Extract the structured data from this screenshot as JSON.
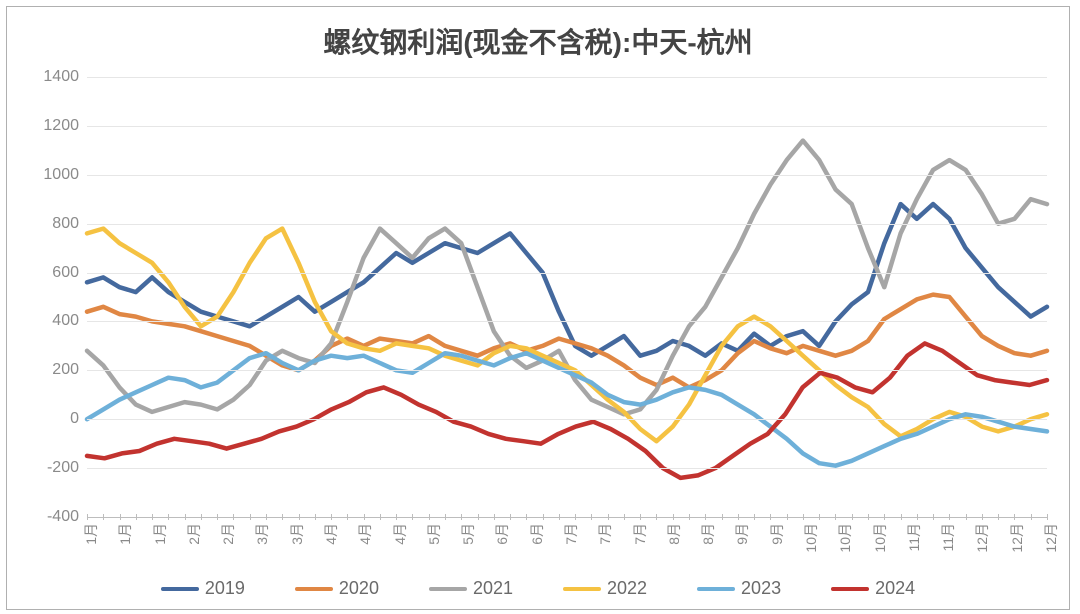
{
  "chart": {
    "type": "line",
    "title": "螺纹钢利润(现金不含税):中天-杭州",
    "title_fontsize": 28,
    "title_color": "#444444",
    "background_color": "#ffffff",
    "grid_color": "#e6e6e6",
    "axis_color": "#bdbdbd",
    "tick_label_color": "#8a8a8a",
    "tick_label_fontsize": 16,
    "x_tick_label_fontsize": 14,
    "ylim": [
      -400,
      1400
    ],
    "yticks": [
      -400,
      -200,
      0,
      200,
      400,
      600,
      800,
      1000,
      1200,
      1400
    ],
    "x_categories": [
      "1月",
      "1月",
      "1月",
      "2月",
      "2月",
      "3月",
      "3月",
      "4月",
      "4月",
      "4月",
      "5月",
      "5月",
      "6月",
      "6月",
      "7月",
      "7月",
      "7月",
      "8月",
      "8月",
      "9月",
      "9月",
      "10月",
      "10月",
      "10月",
      "11月",
      "11月",
      "12月",
      "12月",
      "12月"
    ],
    "x_points": 60,
    "line_width": 4.5,
    "legend_fontsize": 18,
    "series": [
      {
        "name": "2019",
        "color": "#44699e",
        "data": [
          560,
          580,
          540,
          520,
          580,
          520,
          480,
          440,
          420,
          400,
          380,
          420,
          460,
          500,
          440,
          480,
          520,
          560,
          620,
          680,
          640,
          680,
          720,
          700,
          680,
          720,
          760,
          680,
          600,
          440,
          300,
          260,
          300,
          340,
          260,
          280,
          320,
          300,
          260,
          310,
          280,
          350,
          300,
          340,
          360,
          300,
          400,
          470,
          520,
          720,
          880,
          820,
          880,
          820,
          700,
          620,
          540,
          480,
          420,
          460
        ]
      },
      {
        "name": "2020",
        "color": "#e08744",
        "data": [
          440,
          460,
          430,
          420,
          400,
          390,
          380,
          360,
          340,
          320,
          300,
          260,
          220,
          200,
          240,
          300,
          330,
          300,
          330,
          320,
          310,
          340,
          300,
          280,
          260,
          290,
          310,
          280,
          300,
          330,
          310,
          290,
          260,
          220,
          170,
          140,
          170,
          130,
          160,
          200,
          270,
          320,
          290,
          270,
          300,
          280,
          260,
          280,
          320,
          410,
          450,
          490,
          510,
          500,
          420,
          340,
          300,
          270,
          260,
          280
        ]
      },
      {
        "name": "2021",
        "color": "#a6a6a6",
        "data": [
          280,
          220,
          130,
          60,
          30,
          50,
          70,
          60,
          40,
          80,
          140,
          240,
          280,
          250,
          230,
          310,
          480,
          660,
          780,
          720,
          660,
          740,
          780,
          720,
          540,
          360,
          260,
          210,
          240,
          280,
          160,
          80,
          50,
          20,
          40,
          120,
          260,
          380,
          460,
          580,
          700,
          840,
          960,
          1060,
          1140,
          1060,
          940,
          880,
          700,
          540,
          760,
          900,
          1020,
          1060,
          1020,
          920,
          800,
          820,
          900,
          880
        ]
      },
      {
        "name": "2022",
        "color": "#f5c242",
        "data": [
          760,
          780,
          720,
          680,
          640,
          560,
          460,
          380,
          420,
          520,
          640,
          740,
          780,
          640,
          480,
          360,
          310,
          290,
          280,
          310,
          300,
          290,
          260,
          240,
          220,
          270,
          300,
          290,
          260,
          230,
          200,
          140,
          80,
          30,
          -40,
          -90,
          -30,
          60,
          180,
          300,
          380,
          420,
          380,
          320,
          260,
          200,
          140,
          90,
          50,
          -20,
          -70,
          -40,
          0,
          30,
          10,
          -30,
          -50,
          -30,
          0,
          20
        ]
      },
      {
        "name": "2023",
        "color": "#6eb0d9",
        "data": [
          0,
          40,
          80,
          110,
          140,
          170,
          160,
          130,
          150,
          200,
          250,
          270,
          230,
          200,
          240,
          260,
          250,
          260,
          230,
          200,
          190,
          230,
          270,
          260,
          240,
          220,
          250,
          270,
          240,
          210,
          180,
          150,
          100,
          70,
          60,
          80,
          110,
          130,
          120,
          100,
          60,
          20,
          -30,
          -80,
          -140,
          -180,
          -190,
          -170,
          -140,
          -110,
          -80,
          -60,
          -30,
          0,
          20,
          10,
          -10,
          -30,
          -40,
          -50
        ]
      },
      {
        "name": "2024",
        "color": "#c2332f",
        "data": [
          -150,
          -160,
          -140,
          -130,
          -100,
          -80,
          -90,
          -100,
          -120,
          -100,
          -80,
          -50,
          -30,
          0,
          40,
          70,
          110,
          130,
          100,
          60,
          30,
          -10,
          -30,
          -60,
          -80,
          -90,
          -100,
          -60,
          -30,
          -10,
          -40,
          -80,
          -130,
          -200,
          -240,
          -230,
          -200,
          -150,
          -100,
          -60,
          20,
          130,
          190,
          170,
          130,
          110,
          170,
          260,
          310,
          280,
          230,
          180,
          160,
          150,
          140,
          160
        ]
      }
    ]
  }
}
